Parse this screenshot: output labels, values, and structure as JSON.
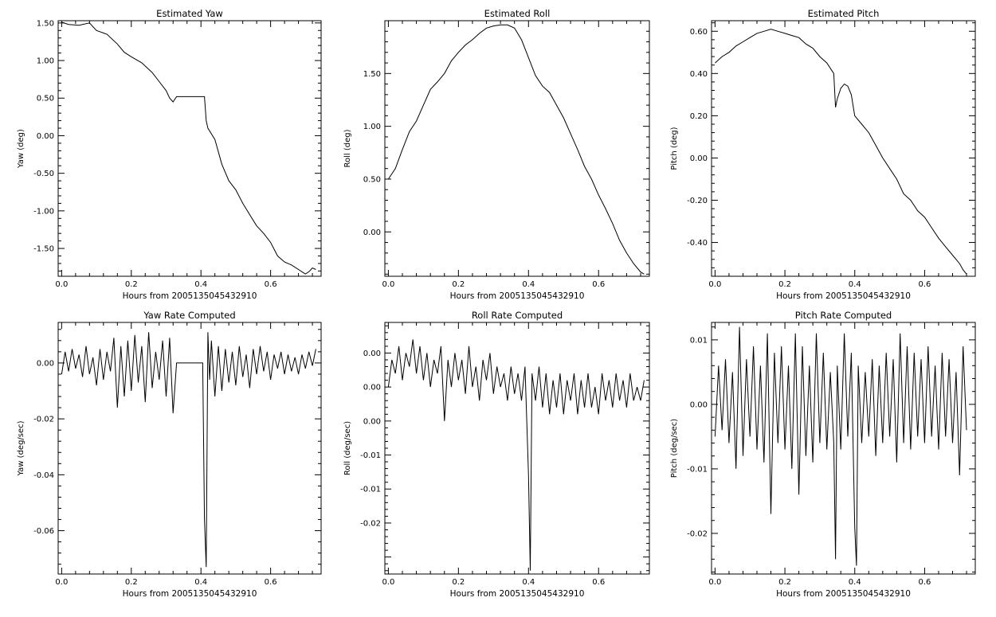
{
  "figure": {
    "background": "#ffffff",
    "line_color": "#000000"
  },
  "chart_data": [
    {
      "type": "line",
      "title": "Estimated Yaw",
      "xlabel": "Hours from 2005135045432910",
      "ylabel": "Yaw (deg)",
      "xlim": [
        -0.01,
        0.745
      ],
      "ylim": [
        -1.87,
        1.53
      ],
      "xticks": [
        0.0,
        0.2,
        0.4,
        0.6
      ],
      "xtick_labels": [
        "0.0",
        "0.2",
        "0.4",
        "0.6"
      ],
      "yticks": [
        1.5,
        1.0,
        0.5,
        0.0,
        -0.5,
        -1.0,
        -1.5
      ],
      "ytick_labels": [
        "1.50",
        "1.00",
        "0.50",
        "0.00",
        "-0.50",
        "-1.00",
        "-1.50"
      ],
      "series": [
        {
          "x": [
            0.0,
            0.02,
            0.05,
            0.08,
            0.1,
            0.13,
            0.16,
            0.18,
            0.2,
            0.23,
            0.26,
            0.28,
            0.3,
            0.31,
            0.32,
            0.33,
            0.35,
            0.37,
            0.39,
            0.41,
            0.415,
            0.42,
            0.44,
            0.46,
            0.48,
            0.5,
            0.52,
            0.54,
            0.56,
            0.58,
            0.6,
            0.62,
            0.64,
            0.66,
            0.68,
            0.7,
            0.71,
            0.72,
            0.73
          ],
          "y": [
            1.51,
            1.48,
            1.47,
            1.5,
            1.4,
            1.35,
            1.22,
            1.11,
            1.05,
            0.97,
            0.84,
            0.72,
            0.6,
            0.5,
            0.45,
            0.52,
            0.52,
            0.52,
            0.52,
            0.52,
            0.2,
            0.1,
            -0.05,
            -0.38,
            -0.6,
            -0.72,
            -0.9,
            -1.05,
            -1.2,
            -1.3,
            -1.42,
            -1.6,
            -1.68,
            -1.72,
            -1.78,
            -1.84,
            -1.81,
            -1.76,
            -1.78
          ]
        }
      ]
    },
    {
      "type": "line",
      "title": "Estimated Roll",
      "xlabel": "Hours from 2005135045432910",
      "ylabel": "Roll (deg)",
      "xlim": [
        -0.01,
        0.745
      ],
      "ylim": [
        -0.42,
        2.0
      ],
      "xticks": [
        0.0,
        0.2,
        0.4,
        0.6
      ],
      "xtick_labels": [
        "0.0",
        "0.2",
        "0.4",
        "0.6"
      ],
      "yticks": [
        1.5,
        1.0,
        0.5,
        0.0
      ],
      "ytick_labels": [
        "1.50",
        "1.00",
        "0.50",
        "0.00"
      ],
      "series": [
        {
          "x": [
            0.0,
            0.02,
            0.04,
            0.06,
            0.08,
            0.1,
            0.12,
            0.14,
            0.16,
            0.18,
            0.2,
            0.22,
            0.24,
            0.26,
            0.28,
            0.3,
            0.32,
            0.34,
            0.36,
            0.38,
            0.4,
            0.42,
            0.44,
            0.46,
            0.48,
            0.5,
            0.52,
            0.54,
            0.56,
            0.58,
            0.6,
            0.62,
            0.64,
            0.66,
            0.68,
            0.7,
            0.72,
            0.73
          ],
          "y": [
            0.5,
            0.6,
            0.78,
            0.95,
            1.05,
            1.2,
            1.35,
            1.42,
            1.5,
            1.62,
            1.7,
            1.77,
            1.82,
            1.88,
            1.93,
            1.95,
            1.96,
            1.96,
            1.93,
            1.82,
            1.65,
            1.48,
            1.38,
            1.32,
            1.2,
            1.08,
            0.93,
            0.78,
            0.62,
            0.5,
            0.35,
            0.22,
            0.08,
            -0.08,
            -0.2,
            -0.3,
            -0.38,
            -0.4
          ]
        }
      ]
    },
    {
      "type": "line",
      "title": "Estimated Pitch",
      "xlabel": "Hours from 2005135045432910",
      "ylabel": "Pitch (deg)",
      "xlim": [
        -0.01,
        0.745
      ],
      "ylim": [
        -0.56,
        0.65
      ],
      "xticks": [
        0.0,
        0.2,
        0.4,
        0.6
      ],
      "xtick_labels": [
        "0.0",
        "0.2",
        "0.4",
        "0.6"
      ],
      "yticks": [
        0.6,
        0.4,
        0.2,
        0.0,
        -0.2,
        -0.4
      ],
      "ytick_labels": [
        "0.60",
        "0.40",
        "0.20",
        "0.00",
        "-0.20",
        "-0.40"
      ],
      "series": [
        {
          "x": [
            0.0,
            0.02,
            0.04,
            0.06,
            0.08,
            0.1,
            0.12,
            0.14,
            0.16,
            0.18,
            0.2,
            0.22,
            0.24,
            0.26,
            0.28,
            0.3,
            0.32,
            0.34,
            0.345,
            0.35,
            0.36,
            0.37,
            0.38,
            0.39,
            0.4,
            0.42,
            0.44,
            0.46,
            0.48,
            0.5,
            0.52,
            0.54,
            0.56,
            0.58,
            0.6,
            0.62,
            0.64,
            0.66,
            0.68,
            0.7,
            0.71,
            0.72
          ],
          "y": [
            0.45,
            0.48,
            0.5,
            0.53,
            0.55,
            0.57,
            0.59,
            0.6,
            0.61,
            0.6,
            0.59,
            0.58,
            0.57,
            0.54,
            0.52,
            0.48,
            0.45,
            0.4,
            0.24,
            0.28,
            0.33,
            0.35,
            0.34,
            0.3,
            0.2,
            0.16,
            0.12,
            0.06,
            0.0,
            -0.05,
            -0.1,
            -0.17,
            -0.2,
            -0.25,
            -0.28,
            -0.33,
            -0.38,
            -0.42,
            -0.46,
            -0.5,
            -0.53,
            -0.55
          ]
        }
      ]
    },
    {
      "type": "line",
      "title": "Yaw Rate Computed",
      "xlabel": "Hours from 2005135045432910",
      "ylabel": "Yaw (deg/sec)",
      "xlim": [
        -0.01,
        0.745
      ],
      "ylim": [
        -0.0755,
        0.0145
      ],
      "xticks": [
        0.0,
        0.2,
        0.4,
        0.6
      ],
      "xtick_labels": [
        "0.0",
        "0.2",
        "0.4",
        "0.6"
      ],
      "yticks": [
        0.0,
        -0.02,
        -0.04,
        -0.06
      ],
      "ytick_labels": [
        "0.00",
        "-0.02",
        "-0.04",
        "-0.06"
      ],
      "series": [
        {
          "x": [
            0.0,
            0.01,
            0.02,
            0.03,
            0.04,
            0.05,
            0.06,
            0.07,
            0.08,
            0.09,
            0.1,
            0.11,
            0.12,
            0.13,
            0.14,
            0.15,
            0.16,
            0.17,
            0.18,
            0.19,
            0.2,
            0.21,
            0.22,
            0.23,
            0.24,
            0.25,
            0.26,
            0.27,
            0.28,
            0.29,
            0.3,
            0.31,
            0.32,
            0.33,
            0.35,
            0.37,
            0.39,
            0.405,
            0.41,
            0.415,
            0.42,
            0.425,
            0.43,
            0.44,
            0.45,
            0.46,
            0.47,
            0.48,
            0.49,
            0.5,
            0.51,
            0.52,
            0.53,
            0.54,
            0.55,
            0.56,
            0.57,
            0.58,
            0.59,
            0.6,
            0.61,
            0.62,
            0.63,
            0.64,
            0.65,
            0.66,
            0.67,
            0.68,
            0.69,
            0.7,
            0.71,
            0.72,
            0.73
          ],
          "y": [
            -0.004,
            0.004,
            -0.003,
            0.005,
            -0.002,
            0.003,
            -0.005,
            0.006,
            -0.004,
            0.002,
            -0.008,
            0.005,
            -0.006,
            0.004,
            -0.003,
            0.009,
            -0.016,
            0.006,
            -0.012,
            0.008,
            -0.01,
            0.01,
            -0.007,
            0.006,
            -0.014,
            0.011,
            -0.009,
            0.004,
            -0.006,
            0.008,
            -0.012,
            0.009,
            -0.018,
            0.0,
            0.0,
            0.0,
            0.0,
            0.0,
            -0.056,
            -0.073,
            0.011,
            -0.006,
            0.008,
            -0.012,
            0.006,
            -0.01,
            0.005,
            -0.007,
            0.004,
            -0.008,
            0.006,
            -0.005,
            0.003,
            -0.009,
            0.005,
            -0.004,
            0.006,
            -0.003,
            0.004,
            -0.006,
            0.003,
            -0.002,
            0.004,
            -0.004,
            0.003,
            -0.003,
            0.002,
            -0.004,
            0.003,
            -0.002,
            0.004,
            -0.001,
            0.005
          ]
        }
      ]
    },
    {
      "type": "line",
      "title": "Roll Rate Computed",
      "xlabel": "Hours from 2005135045432910",
      "ylabel": "Roll (deg/sec)",
      "xlim": [
        -0.01,
        0.745
      ],
      "ylim": [
        -0.0275,
        0.0095
      ],
      "xticks": [
        0.0,
        0.2,
        0.4,
        0.6
      ],
      "xtick_labels": [
        "0.0",
        "0.2",
        "0.4",
        "0.6"
      ],
      "yticks": [
        0.005,
        0.0,
        -0.005,
        -0.01,
        -0.015,
        -0.02
      ],
      "ytick_labels": [
        "0.00",
        "0.00",
        "0.00",
        "-0.01",
        "-0.01",
        "-0.02"
      ],
      "series": [
        {
          "x": [
            0.0,
            0.01,
            0.02,
            0.03,
            0.04,
            0.05,
            0.06,
            0.07,
            0.08,
            0.09,
            0.1,
            0.11,
            0.12,
            0.13,
            0.14,
            0.15,
            0.16,
            0.17,
            0.18,
            0.19,
            0.2,
            0.21,
            0.22,
            0.23,
            0.24,
            0.25,
            0.26,
            0.27,
            0.28,
            0.29,
            0.3,
            0.31,
            0.32,
            0.33,
            0.34,
            0.35,
            0.36,
            0.37,
            0.38,
            0.39,
            0.4,
            0.405,
            0.41,
            0.42,
            0.43,
            0.44,
            0.45,
            0.46,
            0.47,
            0.48,
            0.49,
            0.5,
            0.51,
            0.52,
            0.53,
            0.54,
            0.55,
            0.56,
            0.57,
            0.58,
            0.59,
            0.6,
            0.61,
            0.62,
            0.63,
            0.64,
            0.65,
            0.66,
            0.67,
            0.68,
            0.69,
            0.7,
            0.71,
            0.72,
            0.73
          ],
          "y": [
            0.0,
            0.004,
            0.002,
            0.006,
            0.001,
            0.005,
            0.003,
            0.007,
            0.002,
            0.006,
            0.001,
            0.005,
            0.0,
            0.004,
            0.002,
            0.006,
            -0.005,
            0.004,
            0.0,
            0.005,
            0.001,
            0.004,
            -0.001,
            0.006,
            0.0,
            0.003,
            -0.002,
            0.004,
            0.001,
            0.005,
            -0.001,
            0.003,
            0.0,
            0.002,
            -0.002,
            0.003,
            -0.001,
            0.002,
            -0.002,
            0.003,
            -0.013,
            -0.027,
            0.002,
            -0.002,
            0.003,
            -0.003,
            0.002,
            -0.004,
            0.001,
            -0.003,
            0.002,
            -0.004,
            0.001,
            -0.002,
            0.002,
            -0.004,
            0.001,
            -0.003,
            0.002,
            -0.003,
            0.0,
            -0.004,
            0.002,
            -0.002,
            0.001,
            -0.003,
            0.002,
            -0.002,
            0.001,
            -0.003,
            0.002,
            -0.002,
            0.0,
            -0.002,
            0.001
          ]
        }
      ]
    },
    {
      "type": "line",
      "title": "Pitch Rate Computed",
      "xlabel": "Hours from 2005135045432910",
      "ylabel": "Pitch (deg/sec)",
      "xlim": [
        -0.01,
        0.745
      ],
      "ylim": [
        -0.0263,
        0.0127
      ],
      "xticks": [
        0.0,
        0.2,
        0.4,
        0.6
      ],
      "xtick_labels": [
        "0.0",
        "0.2",
        "0.4",
        "0.6"
      ],
      "yticks": [
        0.01,
        0.0,
        -0.01,
        -0.02
      ],
      "ytick_labels": [
        "0.01",
        "0.00",
        "-0.01",
        "-0.02"
      ],
      "series": [
        {
          "x": [
            0.0,
            0.01,
            0.02,
            0.03,
            0.04,
            0.05,
            0.06,
            0.07,
            0.08,
            0.09,
            0.1,
            0.11,
            0.12,
            0.13,
            0.14,
            0.15,
            0.16,
            0.17,
            0.18,
            0.19,
            0.2,
            0.21,
            0.22,
            0.23,
            0.24,
            0.25,
            0.26,
            0.27,
            0.28,
            0.29,
            0.3,
            0.31,
            0.32,
            0.33,
            0.34,
            0.345,
            0.35,
            0.36,
            0.37,
            0.38,
            0.39,
            0.4,
            0.405,
            0.41,
            0.42,
            0.43,
            0.44,
            0.45,
            0.46,
            0.47,
            0.48,
            0.49,
            0.5,
            0.51,
            0.52,
            0.53,
            0.54,
            0.55,
            0.56,
            0.57,
            0.58,
            0.59,
            0.6,
            0.61,
            0.62,
            0.63,
            0.64,
            0.65,
            0.66,
            0.67,
            0.68,
            0.69,
            0.7,
            0.71,
            0.72
          ],
          "y": [
            -0.005,
            0.006,
            -0.004,
            0.007,
            -0.006,
            0.005,
            -0.01,
            0.012,
            -0.008,
            0.007,
            -0.005,
            0.009,
            -0.007,
            0.006,
            -0.009,
            0.011,
            -0.017,
            0.008,
            -0.006,
            0.009,
            -0.007,
            0.006,
            -0.01,
            0.011,
            -0.014,
            0.009,
            -0.008,
            0.006,
            -0.009,
            0.011,
            -0.006,
            0.008,
            -0.007,
            0.005,
            -0.006,
            -0.024,
            0.006,
            -0.007,
            0.011,
            -0.005,
            0.008,
            -0.019,
            -0.025,
            0.006,
            -0.006,
            0.005,
            -0.005,
            0.007,
            -0.008,
            0.006,
            -0.006,
            0.008,
            -0.005,
            0.007,
            -0.009,
            0.011,
            -0.006,
            0.009,
            -0.007,
            0.008,
            -0.005,
            0.007,
            -0.006,
            0.009,
            -0.005,
            0.006,
            -0.007,
            0.008,
            -0.005,
            0.007,
            -0.006,
            0.005,
            -0.011,
            0.009,
            -0.004
          ]
        }
      ]
    }
  ]
}
